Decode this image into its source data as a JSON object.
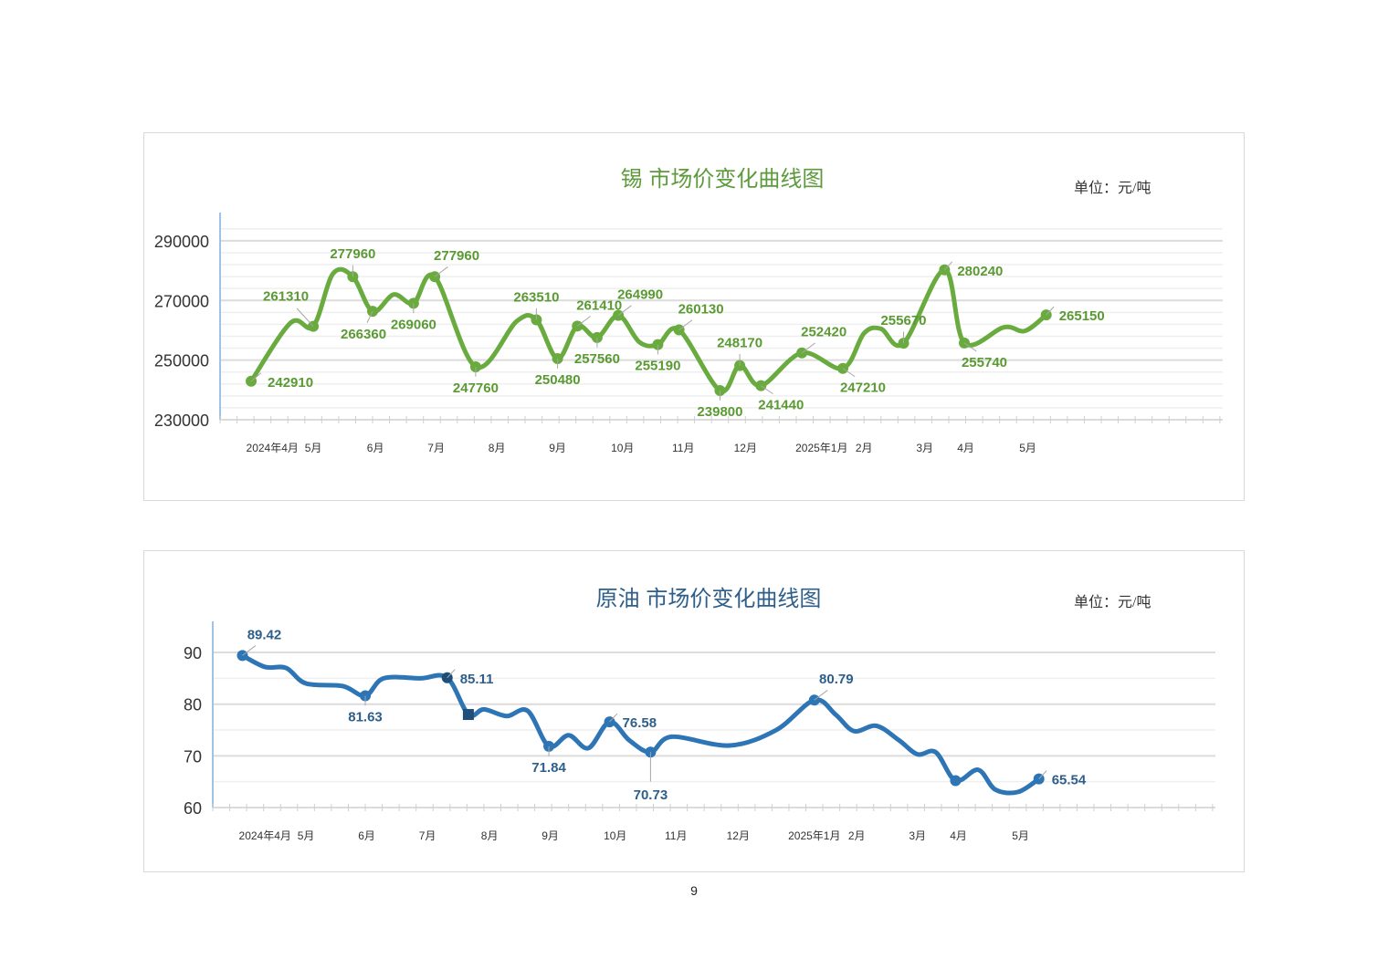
{
  "page_number": "9",
  "chart_data": [
    {
      "type": "line",
      "title": "锡 市场价变化曲线图",
      "unit": "单位：元/吨",
      "color": "#6aab3f",
      "label_color": "#5a9a32",
      "xlabel": "",
      "ylabel": "",
      "xlim": [
        0,
        71
      ],
      "ylim": [
        230000,
        297000
      ],
      "yticks": [
        230000,
        250000,
        270000,
        290000
      ],
      "ytick_labels": [
        "230000",
        "250000",
        "270000",
        "290000"
      ],
      "grid_minor_step": 4000,
      "grid": true,
      "xticks": [
        {
          "x": 3.7,
          "label": "2024年4月"
        },
        {
          "x": 6.6,
          "label": "5月"
        },
        {
          "x": 11.0,
          "label": "6月"
        },
        {
          "x": 15.3,
          "label": "7月"
        },
        {
          "x": 19.6,
          "label": "8月"
        },
        {
          "x": 23.9,
          "label": "9月"
        },
        {
          "x": 28.5,
          "label": "10月"
        },
        {
          "x": 32.8,
          "label": "11月"
        },
        {
          "x": 37.2,
          "label": "12月"
        },
        {
          "x": 42.6,
          "label": "2025年1月"
        },
        {
          "x": 45.6,
          "label": "2月"
        },
        {
          "x": 49.9,
          "label": "3月"
        },
        {
          "x": 52.8,
          "label": "4月"
        },
        {
          "x": 57.2,
          "label": "5月"
        }
      ],
      "points": [
        {
          "x": 2.2,
          "y": 242910,
          "label": "242910",
          "pos": "right-low"
        },
        {
          "x": 5.0,
          "y": 262500
        },
        {
          "x": 6.6,
          "y": 261310,
          "label": "261310",
          "pos": "above-left"
        },
        {
          "x": 8.0,
          "y": 279000
        },
        {
          "x": 9.4,
          "y": 277960,
          "label": "277960",
          "pos": "above"
        },
        {
          "x": 10.8,
          "y": 266360,
          "label": "266360",
          "pos": "below-left"
        },
        {
          "x": 12.3,
          "y": 272000
        },
        {
          "x": 13.7,
          "y": 269060,
          "label": "269060",
          "pos": "below"
        },
        {
          "x": 15.2,
          "y": 277960,
          "label": "277960",
          "pos": "above-right"
        },
        {
          "x": 18.1,
          "y": 247760,
          "label": "247760",
          "pos": "below"
        },
        {
          "x": 21.0,
          "y": 263000
        },
        {
          "x": 22.4,
          "y": 263510,
          "label": "263510",
          "pos": "above"
        },
        {
          "x": 23.9,
          "y": 250480,
          "label": "250480",
          "pos": "below"
        },
        {
          "x": 25.3,
          "y": 261410,
          "label": "261410",
          "pos": "above-right"
        },
        {
          "x": 26.7,
          "y": 257560,
          "label": "257560",
          "pos": "below"
        },
        {
          "x": 28.2,
          "y": 264990,
          "label": "264990",
          "pos": "above-right"
        },
        {
          "x": 29.7,
          "y": 256000
        },
        {
          "x": 31.0,
          "y": 255190,
          "label": "255190",
          "pos": "below"
        },
        {
          "x": 32.5,
          "y": 260130,
          "label": "260130",
          "pos": "above-right"
        },
        {
          "x": 35.4,
          "y": 239800,
          "label": "239800",
          "pos": "below"
        },
        {
          "x": 36.8,
          "y": 248170,
          "label": "248170",
          "pos": "above"
        },
        {
          "x": 38.3,
          "y": 241440,
          "label": "241440",
          "pos": "below-right"
        },
        {
          "x": 41.2,
          "y": 252420,
          "label": "252420",
          "pos": "above-right"
        },
        {
          "x": 44.1,
          "y": 247210,
          "label": "247210",
          "pos": "below-right"
        },
        {
          "x": 45.6,
          "y": 259000
        },
        {
          "x": 46.8,
          "y": 260500
        },
        {
          "x": 48.4,
          "y": 255670,
          "label": "255670",
          "pos": "above"
        },
        {
          "x": 51.3,
          "y": 280240,
          "label": "280240",
          "pos": "right"
        },
        {
          "x": 52.7,
          "y": 255740,
          "label": "255740",
          "pos": "below-right"
        },
        {
          "x": 55.5,
          "y": 261000
        },
        {
          "x": 57.0,
          "y": 259800
        },
        {
          "x": 58.5,
          "y": 265150,
          "label": "265150",
          "pos": "right"
        }
      ]
    },
    {
      "type": "line",
      "title": "原油 市场价变化曲线图",
      "unit": "单位：元/吨",
      "color": "#2e75b6",
      "label_color": "#2e5f8a",
      "xlabel": "",
      "ylabel": "",
      "xlim": [
        0,
        71
      ],
      "ylim": [
        60,
        94.6
      ],
      "yticks": [
        60,
        70,
        80,
        90
      ],
      "ytick_labels": [
        "60",
        "70",
        "80",
        "90"
      ],
      "grid_minor_step": 5,
      "grid": true,
      "xticks": [
        {
          "x": 3.7,
          "label": "2024年4月"
        },
        {
          "x": 6.6,
          "label": "5月"
        },
        {
          "x": 10.9,
          "label": "6月"
        },
        {
          "x": 15.2,
          "label": "7月"
        },
        {
          "x": 19.6,
          "label": "8月"
        },
        {
          "x": 23.9,
          "label": "9月"
        },
        {
          "x": 28.5,
          "label": "10月"
        },
        {
          "x": 32.8,
          "label": "11月"
        },
        {
          "x": 37.2,
          "label": "12月"
        },
        {
          "x": 42.6,
          "label": "2025年1月"
        },
        {
          "x": 45.6,
          "label": "2月"
        },
        {
          "x": 49.9,
          "label": "3月"
        },
        {
          "x": 52.8,
          "label": "4月"
        },
        {
          "x": 57.2,
          "label": "5月"
        }
      ],
      "points": [
        {
          "x": 2.1,
          "y": 89.42,
          "label": "89.42",
          "pos": "above-right"
        },
        {
          "x": 3.7,
          "y": 87.2
        },
        {
          "x": 5.2,
          "y": 87.0
        },
        {
          "x": 6.6,
          "y": 84.0
        },
        {
          "x": 9.2,
          "y": 83.5
        },
        {
          "x": 10.8,
          "y": 81.63,
          "label": "81.63",
          "pos": "below"
        },
        {
          "x": 12.1,
          "y": 85.0
        },
        {
          "x": 14.7,
          "y": 85.0
        },
        {
          "x": 16.6,
          "y": 85.11,
          "label": "85.11",
          "pos": "right",
          "marker": "dark"
        },
        {
          "x": 18.1,
          "y": 78.0,
          "marker": "square"
        },
        {
          "x": 19.2,
          "y": 79.0
        },
        {
          "x": 20.8,
          "y": 77.7
        },
        {
          "x": 22.3,
          "y": 78.7
        },
        {
          "x": 23.8,
          "y": 71.84,
          "label": "71.84",
          "pos": "below"
        },
        {
          "x": 25.2,
          "y": 74.0
        },
        {
          "x": 26.6,
          "y": 71.5
        },
        {
          "x": 28.1,
          "y": 76.58,
          "label": "76.58",
          "pos": "right"
        },
        {
          "x": 29.5,
          "y": 73.0
        },
        {
          "x": 31.0,
          "y": 70.73,
          "label": "70.73",
          "pos": "below-far"
        },
        {
          "x": 32.5,
          "y": 73.7
        },
        {
          "x": 36.6,
          "y": 72.0
        },
        {
          "x": 39.9,
          "y": 75.0
        },
        {
          "x": 42.6,
          "y": 80.79,
          "label": "80.79",
          "pos": "above-right"
        },
        {
          "x": 44.1,
          "y": 78.0
        },
        {
          "x": 45.4,
          "y": 74.8
        },
        {
          "x": 47.0,
          "y": 75.8
        },
        {
          "x": 48.6,
          "y": 73.0
        },
        {
          "x": 49.9,
          "y": 70.3
        },
        {
          "x": 51.2,
          "y": 70.7
        },
        {
          "x": 52.6,
          "y": 65.2,
          "marker": "dot"
        },
        {
          "x": 54.2,
          "y": 67.3
        },
        {
          "x": 55.4,
          "y": 63.5
        },
        {
          "x": 57.0,
          "y": 63.0
        },
        {
          "x": 58.5,
          "y": 65.54,
          "label": "65.54",
          "pos": "right"
        }
      ]
    }
  ]
}
